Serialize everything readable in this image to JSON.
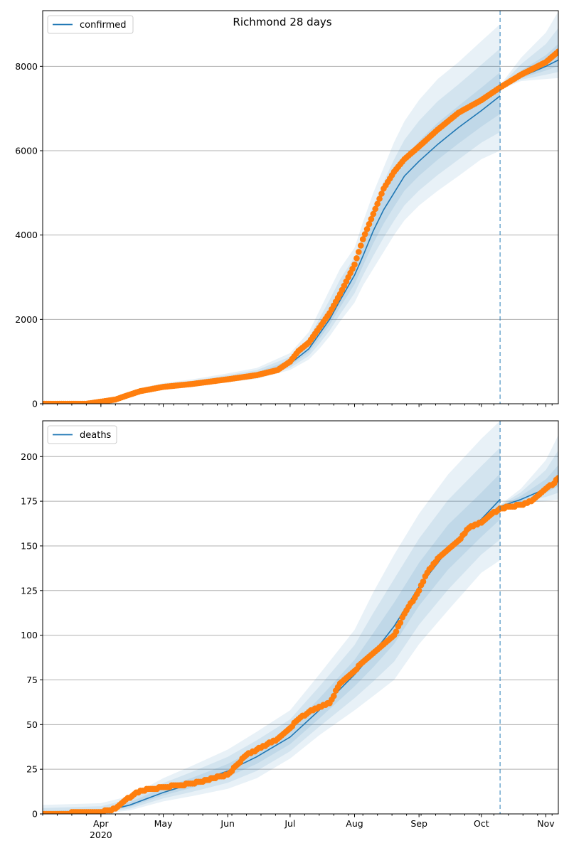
{
  "chart_data": {
    "type": "line",
    "title": "Richmond 28 days",
    "x_start": "2020-03-04",
    "xlim": [
      "2020-03-04",
      "2020-11-07"
    ],
    "x_ticks": [
      {
        "date": "2020-04-01",
        "label": "Apr",
        "sublabel": "2020"
      },
      {
        "date": "2020-05-01",
        "label": "May"
      },
      {
        "date": "2020-06-01",
        "label": "Jun"
      },
      {
        "date": "2020-07-01",
        "label": "Jul"
      },
      {
        "date": "2020-08-01",
        "label": "Aug"
      },
      {
        "date": "2020-09-01",
        "label": "Sep"
      },
      {
        "date": "2020-10-01",
        "label": "Oct"
      },
      {
        "date": "2020-11-01",
        "label": "Nov"
      }
    ],
    "forecast_start": "2020-10-10",
    "band_levels": [
      1.0,
      0.66,
      0.33
    ],
    "colors": {
      "model": "#1f77b4",
      "observed": "#ff7f0e",
      "grid": "#b0b0b0"
    },
    "panels": [
      {
        "legend": "confirmed",
        "legend_placement": "top-left",
        "ylim": [
          0,
          9320
        ],
        "y_ticks": [
          0,
          2000,
          4000,
          6000,
          8000
        ],
        "grid": true,
        "model_segments": [
          {
            "dates": [
              "2020-03-04",
              "2020-03-25",
              "2020-04-01",
              "2020-04-10",
              "2020-04-20",
              "2020-05-01",
              "2020-05-15",
              "2020-06-01",
              "2020-06-15",
              "2020-07-01",
              "2020-07-10",
              "2020-07-15",
              "2020-07-20",
              "2020-07-25",
              "2020-08-01",
              "2020-08-05",
              "2020-08-10",
              "2020-08-15",
              "2020-08-20",
              "2020-08-25",
              "2020-09-01",
              "2020-09-10",
              "2020-09-20",
              "2020-10-01",
              "2020-10-10"
            ],
            "median": [
              0,
              0,
              30,
              150,
              300,
              400,
              480,
              600,
              700,
              950,
              1300,
              1650,
              2000,
              2450,
              3050,
              3500,
              4100,
              4600,
              5000,
              5400,
              5750,
              6150,
              6550,
              6950,
              7300
            ],
            "upper": [
              20,
              20,
              60,
              200,
              370,
              490,
              580,
              720,
              850,
              1200,
              1700,
              2200,
              2700,
              3200,
              3700,
              4300,
              5000,
              5600,
              6200,
              6700,
              7200,
              7700,
              8100,
              8600,
              9000
            ],
            "lower": [
              0,
              0,
              15,
              110,
              250,
              340,
              410,
              510,
              590,
              800,
              1050,
              1300,
              1600,
              1950,
              2400,
              2800,
              3200,
              3600,
              4000,
              4350,
              4700,
              5050,
              5400,
              5800,
              6000
            ]
          },
          {
            "dates": [
              "2020-10-10",
              "2020-10-20",
              "2020-11-01",
              "2020-11-07"
            ],
            "median": [
              7500,
              7750,
              8000,
              8150
            ],
            "upper": [
              7550,
              8200,
              8800,
              9300
            ],
            "lower": [
              7450,
              7650,
              7700,
              7720
            ]
          }
        ],
        "observed": {
          "dates": [
            "2020-03-04",
            "2020-03-25",
            "2020-03-28",
            "2020-04-01",
            "2020-04-08",
            "2020-04-12",
            "2020-04-20",
            "2020-05-01",
            "2020-05-15",
            "2020-06-01",
            "2020-06-15",
            "2020-06-25",
            "2020-07-01",
            "2020-07-05",
            "2020-07-10",
            "2020-07-15",
            "2020-07-20",
            "2020-07-25",
            "2020-08-01",
            "2020-08-05",
            "2020-08-10",
            "2020-08-15",
            "2020-08-20",
            "2020-08-25",
            "2020-09-01",
            "2020-09-10",
            "2020-09-20",
            "2020-10-01",
            "2020-10-10",
            "2020-10-20",
            "2020-11-01",
            "2020-11-07"
          ],
          "values": [
            0,
            0,
            20,
            50,
            100,
            170,
            300,
            400,
            470,
            580,
            680,
            800,
            1000,
            1250,
            1450,
            1800,
            2150,
            2600,
            3300,
            3900,
            4500,
            5100,
            5500,
            5800,
            6100,
            6500,
            6900,
            7200,
            7500,
            7800,
            8100,
            8350
          ]
        }
      },
      {
        "legend": "deaths",
        "legend_placement": "top-left",
        "ylim": [
          0,
          220
        ],
        "y_ticks": [
          0,
          25,
          50,
          75,
          100,
          125,
          150,
          175,
          200
        ],
        "grid": true,
        "model_segments": [
          {
            "dates": [
              "2020-03-04",
              "2020-04-01",
              "2020-04-15",
              "2020-05-01",
              "2020-05-15",
              "2020-06-01",
              "2020-06-15",
              "2020-07-01",
              "2020-07-15",
              "2020-08-01",
              "2020-08-10",
              "2020-08-20",
              "2020-09-01",
              "2020-09-15",
              "2020-10-01",
              "2020-10-10"
            ],
            "median": [
              0,
              1,
              5,
              12,
              17,
              24,
              32,
              43,
              58,
              78,
              90,
              105,
              127,
              148,
              165,
              176
            ],
            "upper": [
              5,
              6,
              10,
              20,
              27,
              36,
              46,
              58,
              78,
              103,
              124,
              145,
              168,
              190,
              210,
              220
            ],
            "lower": [
              0,
              0,
              2,
              7,
              10,
              14,
              20,
              31,
              44,
              58,
              66,
              75,
              95,
              114,
              135,
              142
            ]
          },
          {
            "dates": [
              "2020-10-10",
              "2020-10-20",
              "2020-11-01",
              "2020-11-07"
            ],
            "median": [
              172,
              176,
              182,
              187
            ],
            "upper": [
              173,
              182,
              198,
              212
            ],
            "lower": [
              171,
              174,
              175,
              176
            ]
          }
        ],
        "observed": {
          "dates": [
            "2020-03-04",
            "2020-04-01",
            "2020-04-08",
            "2020-04-12",
            "2020-04-20",
            "2020-05-01",
            "2020-05-15",
            "2020-06-01",
            "2020-06-10",
            "2020-06-15",
            "2020-06-25",
            "2020-07-01",
            "2020-07-05",
            "2020-07-10",
            "2020-07-20",
            "2020-07-25",
            "2020-08-01",
            "2020-08-05",
            "2020-08-10",
            "2020-08-15",
            "2020-08-20",
            "2020-08-25",
            "2020-09-01",
            "2020-09-05",
            "2020-09-10",
            "2020-09-15",
            "2020-09-20",
            "2020-09-25",
            "2020-10-01",
            "2020-10-05",
            "2020-10-10",
            "2020-10-20",
            "2020-10-25",
            "2020-11-01",
            "2020-11-05",
            "2020-11-07"
          ],
          "values": [
            0,
            1,
            3,
            7,
            13,
            15,
            17,
            22,
            33,
            36,
            42,
            48,
            53,
            57,
            62,
            73,
            80,
            85,
            90,
            95,
            100,
            112,
            125,
            135,
            143,
            148,
            153,
            160,
            163,
            167,
            171,
            173,
            175,
            182,
            185,
            188
          ]
        }
      }
    ]
  }
}
